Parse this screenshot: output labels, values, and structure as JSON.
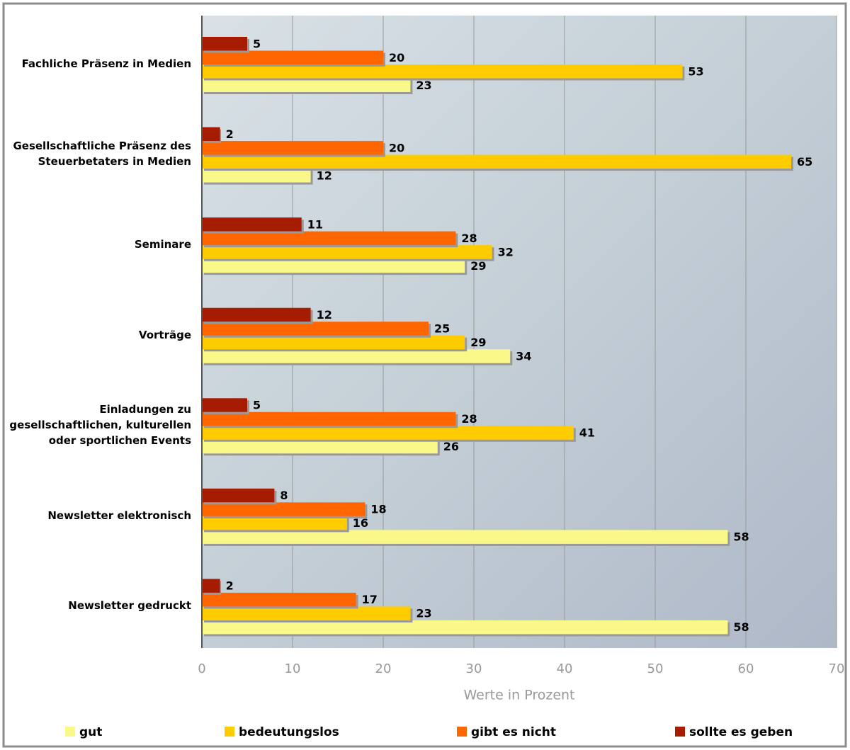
{
  "chart_data": {
    "type": "bar",
    "orientation": "horizontal",
    "x_label": "Werte in Prozent",
    "categories": [
      "Fachliche Präsenz in Medien",
      "Gesellschaftliche Präsenz des\nSteuerbetaters in Medien",
      "Seminare",
      "Vorträge",
      "Einladungen zu\ngesellschaftlichen, kulturellen\noder sportlichen Events",
      "Newsletter elektronisch",
      "Newsletter gedruckt"
    ],
    "series": [
      {
        "name": "gut",
        "color": "#fbf88a",
        "values": [
          23,
          12,
          29,
          34,
          26,
          58,
          58
        ]
      },
      {
        "name": "bedeutungslos",
        "color": "#ffcc00",
        "values": [
          53,
          65,
          32,
          29,
          41,
          16,
          23
        ]
      },
      {
        "name": "gibt es nicht",
        "color": "#ff6600",
        "values": [
          20,
          20,
          28,
          25,
          28,
          18,
          17
        ]
      },
      {
        "name": "sollte es geben",
        "color": "#a61c00",
        "values": [
          5,
          2,
          11,
          12,
          5,
          8,
          2
        ]
      }
    ],
    "xlim": [
      0,
      70
    ],
    "xticks": [
      0,
      10,
      20,
      30,
      40,
      50,
      60,
      70
    ],
    "grid": true,
    "legend": "bottom"
  }
}
